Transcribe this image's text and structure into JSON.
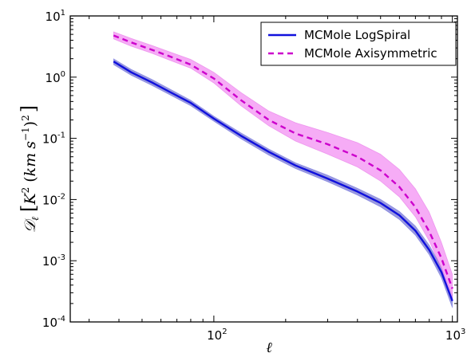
{
  "chart_data": {
    "type": "line",
    "xlabel": "ℓ",
    "ylabel": "𝒟ℓ  [K² (km s⁻¹)²]",
    "ylabel_parts": {
      "main": "𝒟",
      "sub": "ℓ",
      "bracket_open": "[",
      "K": "K",
      "K_exp": "2",
      "open_paren": "(",
      "km": "km",
      "s": "s",
      "s_exp": "−1",
      "close_paren": ")",
      "paren_exp": "2",
      "bracket_close": "]"
    },
    "xscale": "log",
    "yscale": "log",
    "xlim": [
      25,
      1050
    ],
    "ylim": [
      0.0001,
      10
    ],
    "x_ticks": [
      {
        "value": 100,
        "base": "10",
        "exp": "2"
      },
      {
        "value": 1000,
        "base": "10",
        "exp": "3"
      }
    ],
    "y_ticks": [
      {
        "value": 0.0001,
        "base": "10",
        "exp": "-4"
      },
      {
        "value": 0.001,
        "base": "10",
        "exp": "-3"
      },
      {
        "value": 0.01,
        "base": "10",
        "exp": "-2"
      },
      {
        "value": 0.1,
        "base": "10",
        "exp": "-1"
      },
      {
        "value": 1,
        "base": "10",
        "exp": "0"
      },
      {
        "value": 10,
        "base": "10",
        "exp": "1"
      }
    ],
    "grid": false,
    "legend_position": "top-right",
    "series": [
      {
        "name": "MCMole LogSpiral",
        "color": "#1010dd",
        "band_color": "#8a8ad8",
        "linestyle": "solid",
        "x": [
          38,
          45,
          55,
          65,
          80,
          100,
          130,
          170,
          220,
          300,
          400,
          500,
          600,
          700,
          800,
          900,
          1000
        ],
        "y": [
          1.8,
          1.2,
          0.82,
          0.58,
          0.38,
          0.21,
          0.11,
          0.06,
          0.036,
          0.022,
          0.0135,
          0.0088,
          0.0055,
          0.0031,
          0.0015,
          0.00065,
          0.00022
        ],
        "lower": [
          1.6,
          1.07,
          0.73,
          0.52,
          0.34,
          0.19,
          0.098,
          0.053,
          0.032,
          0.0195,
          0.0118,
          0.0076,
          0.0047,
          0.0026,
          0.00125,
          0.00052,
          0.00017
        ],
        "upper": [
          2.0,
          1.34,
          0.92,
          0.65,
          0.42,
          0.23,
          0.123,
          0.067,
          0.04,
          0.025,
          0.0153,
          0.0101,
          0.0064,
          0.0037,
          0.0018,
          0.0008,
          0.00028
        ]
      },
      {
        "name": "MCMole Axisymmetric",
        "color": "#cc00cc",
        "band_color": "#f59df5",
        "linestyle": "dashed",
        "x": [
          38,
          45,
          55,
          65,
          80,
          100,
          130,
          170,
          220,
          300,
          400,
          500,
          600,
          700,
          800,
          900,
          1000
        ],
        "y": [
          4.8,
          3.7,
          2.8,
          2.2,
          1.6,
          0.95,
          0.42,
          0.2,
          0.12,
          0.08,
          0.05,
          0.03,
          0.016,
          0.0075,
          0.003,
          0.0011,
          0.00035
        ],
        "lower": [
          4.2,
          3.2,
          2.45,
          1.9,
          1.4,
          0.8,
          0.34,
          0.16,
          0.09,
          0.055,
          0.034,
          0.02,
          0.011,
          0.0052,
          0.0021,
          0.00075,
          0.00022
        ],
        "upper": [
          5.5,
          4.3,
          3.3,
          2.6,
          1.95,
          1.2,
          0.56,
          0.28,
          0.18,
          0.125,
          0.085,
          0.055,
          0.031,
          0.015,
          0.0062,
          0.002,
          0.0006
        ]
      }
    ]
  }
}
